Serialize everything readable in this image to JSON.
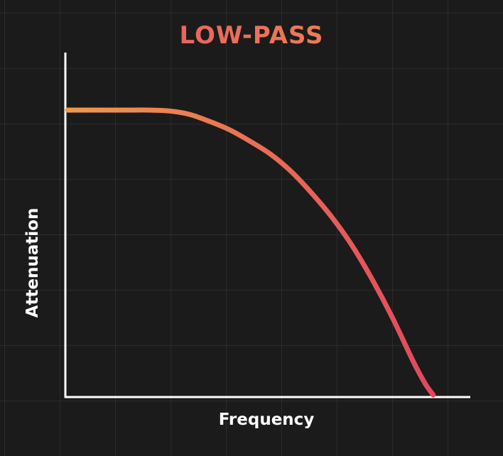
{
  "chart_data": {
    "type": "line",
    "title": "LOW-PASS",
    "xlabel": "Frequency",
    "ylabel": "Attenuation",
    "grid": true,
    "colors": {
      "background": "#1b1b1b",
      "axis": "#ffffff",
      "curve_start": "#ef9a4a",
      "curve_end": "#e2475e",
      "title_start": "#e8466a",
      "title_end": "#ef9a4a"
    },
    "xlim": [
      0,
      1
    ],
    "ylim": [
      0,
      1
    ],
    "series": [
      {
        "x": [
          0,
          0.05,
          0.1,
          0.15,
          0.2,
          0.25,
          0.3,
          0.35,
          0.4,
          0.45,
          0.5,
          0.55,
          0.6,
          0.65,
          0.7,
          0.75,
          0.8,
          0.85,
          0.88,
          0.9
        ],
        "values": [
          1.0,
          1.0,
          1.0,
          1.0,
          1.0,
          0.997,
          0.985,
          0.96,
          0.93,
          0.89,
          0.845,
          0.785,
          0.71,
          0.625,
          0.525,
          0.405,
          0.27,
          0.12,
          0.04,
          0.0
        ]
      }
    ]
  }
}
